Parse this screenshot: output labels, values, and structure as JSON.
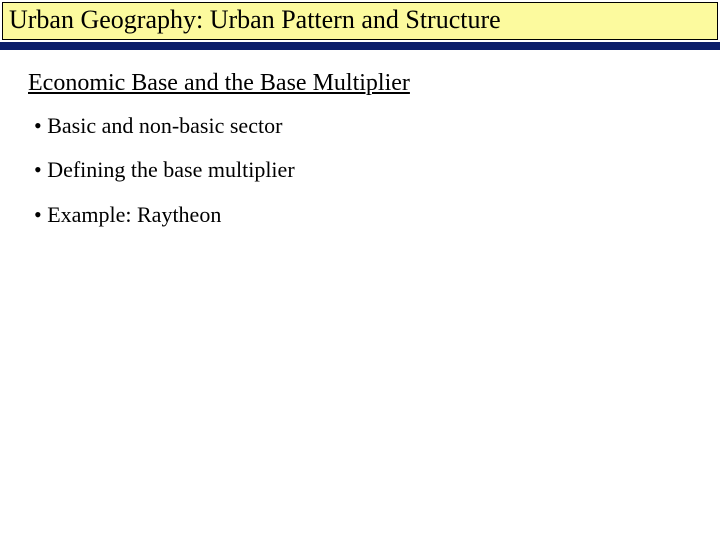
{
  "slide": {
    "title": "Urban Geography: Urban Pattern and Structure",
    "title_bar": {
      "background_color": "#fcfa9e",
      "border_color": "#000000",
      "text_color": "#000000",
      "font_size_pt": 20
    },
    "accent_line": {
      "color": "#0b1e6b",
      "thickness_px": 8
    },
    "section_heading": {
      "text": "Economic Base and the Base Multiplier",
      "underlined": true,
      "font_size_pt": 18,
      "text_color": "#000000"
    },
    "bullets": {
      "items": [
        "Basic and non-basic sector",
        "Defining the base multiplier",
        "Example: Raytheon"
      ],
      "marker": "•",
      "font_size_pt": 17,
      "text_color": "#000000"
    },
    "background_color": "#ffffff",
    "font_family": "Times New Roman"
  }
}
